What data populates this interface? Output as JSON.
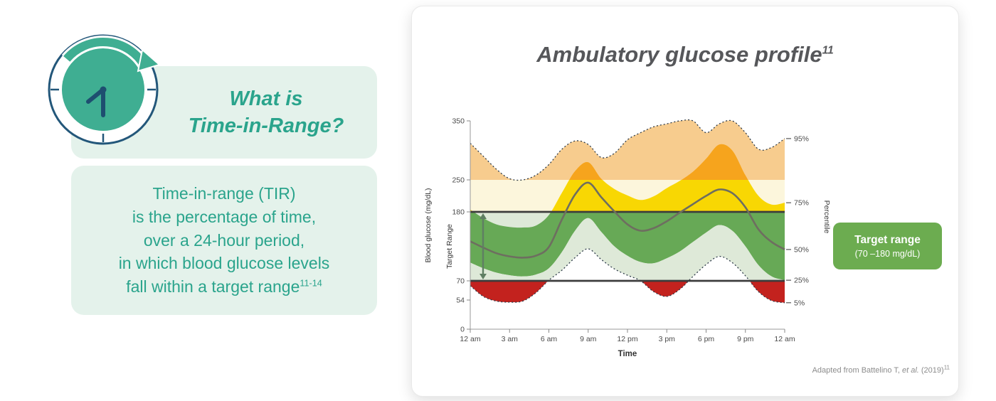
{
  "colors": {
    "teal": "#2AA48C",
    "mint": "#E4F2EB",
    "target-green": "#6CAC50",
    "title-gray": "#56575A"
  },
  "intro": {
    "heading_line1": "What is",
    "heading_line2": "Time-in-Range?",
    "lines": [
      "Time-in-range (TIR)",
      "is the percentage of time,",
      "over a 24-hour period,",
      "in which blood glucose levels",
      "fall within a target range"
    ],
    "lines_sup": "11-14"
  },
  "card": {
    "title": "Ambulatory glucose profile",
    "title_sup": "11",
    "target_box": {
      "line1": "Target range",
      "line2": "(70 –180 mg/dL)"
    },
    "footnote": {
      "prefix": "Adapted from Battelino T, ",
      "etal": "et al.",
      "suffix": " (2019)",
      "sup": "11"
    }
  },
  "chart_data": {
    "type": "area",
    "title": "Ambulatory glucose profile",
    "xlabel": "Time",
    "ylabel_left": "Blood glucose (mg/dL)",
    "ylabel_left2": "Target Range",
    "ylabel_right": "Percentile",
    "ylim": [
      0,
      350
    ],
    "y_ticks": [
      350,
      250,
      180,
      70,
      54,
      0
    ],
    "target_range": [
      70,
      180
    ],
    "high_zone": [
      180,
      250
    ],
    "x_range_hours": [
      0,
      24
    ],
    "x_tick_hours": [
      0,
      3,
      6,
      9,
      12,
      15,
      18,
      21,
      24
    ],
    "x_tick_labels": [
      "12 am",
      "3 am",
      "6 am",
      "9 am",
      "12 pm",
      "3 pm",
      "6 pm",
      "9 pm",
      "12 am"
    ],
    "percentile_labels": {
      "p95": "95%",
      "p75": "75%",
      "p50": "50%",
      "p25": "25%",
      "p5": "5%"
    },
    "series": [
      {
        "name": "p95",
        "values": [
          312,
          290,
          268,
          252,
          250,
          258,
          276,
          302,
          316,
          310,
          288,
          295,
          318,
          330,
          340,
          345,
          350,
          350,
          330,
          345,
          350,
          330,
          302,
          305,
          320
        ]
      },
      {
        "name": "p75",
        "values": [
          185,
          170,
          160,
          156,
          155,
          158,
          175,
          222,
          265,
          280,
          252,
          230,
          216,
          206,
          214,
          232,
          248,
          264,
          286,
          310,
          300,
          258,
          215,
          196,
          200
        ]
      },
      {
        "name": "p50",
        "values": [
          133,
          123,
          114,
          109,
          107,
          110,
          124,
          168,
          218,
          244,
          212,
          181,
          160,
          150,
          154,
          165,
          179,
          197,
          215,
          229,
          221,
          190,
          152,
          132,
          120
        ]
      },
      {
        "name": "p25",
        "values": [
          99,
          90,
          83,
          79,
          77,
          80,
          90,
          116,
          150,
          170,
          148,
          125,
          110,
          100,
          98,
          106,
          117,
          132,
          147,
          159,
          150,
          125,
          95,
          77,
          71
        ]
      },
      {
        "name": "p5",
        "values": [
          66,
          57,
          52,
          50,
          52,
          60,
          71,
          87,
          107,
          121,
          104,
          89,
          79,
          70,
          61,
          57,
          63,
          77,
          96,
          109,
          99,
          78,
          61,
          53,
          49
        ]
      }
    ],
    "colors": {
      "pale_orange": "#F7CC8E",
      "orange": "#F6A41D",
      "yellow": "#F8D703",
      "green": "#67A956",
      "pale_green": "#DEE9D8",
      "red": "#C3221E",
      "zone_cream": "#FCF6DC",
      "median": "#6E6E60",
      "target_line": "#3C3C3C",
      "dotted": "#2E3B49",
      "axis": "#999999",
      "text": "#4B4B4B",
      "arrow": "#5F7E63"
    }
  }
}
